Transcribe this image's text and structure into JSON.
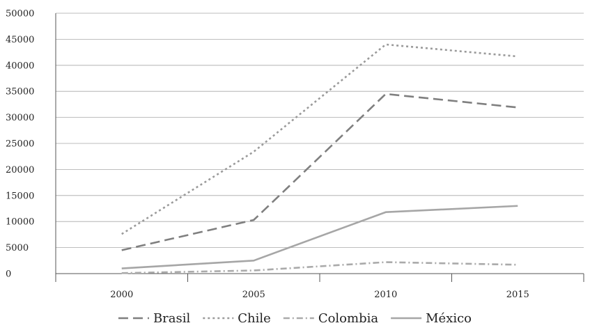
{
  "chart_data": {
    "type": "line",
    "title": "",
    "xlabel": "",
    "ylabel": "",
    "categories": [
      "2000",
      "2005",
      "2010",
      "2015"
    ],
    "ylim": [
      0,
      50000
    ],
    "yticks": [
      0,
      5000,
      10000,
      15000,
      20000,
      25000,
      30000,
      35000,
      40000,
      45000,
      50000
    ],
    "ytick_labels": [
      "0",
      "5000",
      "10000",
      "15000",
      "20000",
      "25000",
      "30000",
      "35000",
      "40000",
      "45000",
      "50000"
    ],
    "grid": true,
    "legend_position": "bottom",
    "series": [
      {
        "name": "Brasil",
        "values": [
          4500,
          10300,
          34500,
          31900
        ],
        "color": "#7f7f7f",
        "style": "long-dash"
      },
      {
        "name": "Chile",
        "values": [
          7600,
          23400,
          44000,
          41700
        ],
        "color": "#9a9a9a",
        "style": "dotted"
      },
      {
        "name": "Colombia",
        "values": [
          100,
          600,
          2200,
          1700
        ],
        "color": "#aaaaaa",
        "style": "dash-dot"
      },
      {
        "name": "México",
        "values": [
          1000,
          2500,
          11800,
          13000
        ],
        "color": "#a6a6a6",
        "style": "solid"
      }
    ]
  }
}
